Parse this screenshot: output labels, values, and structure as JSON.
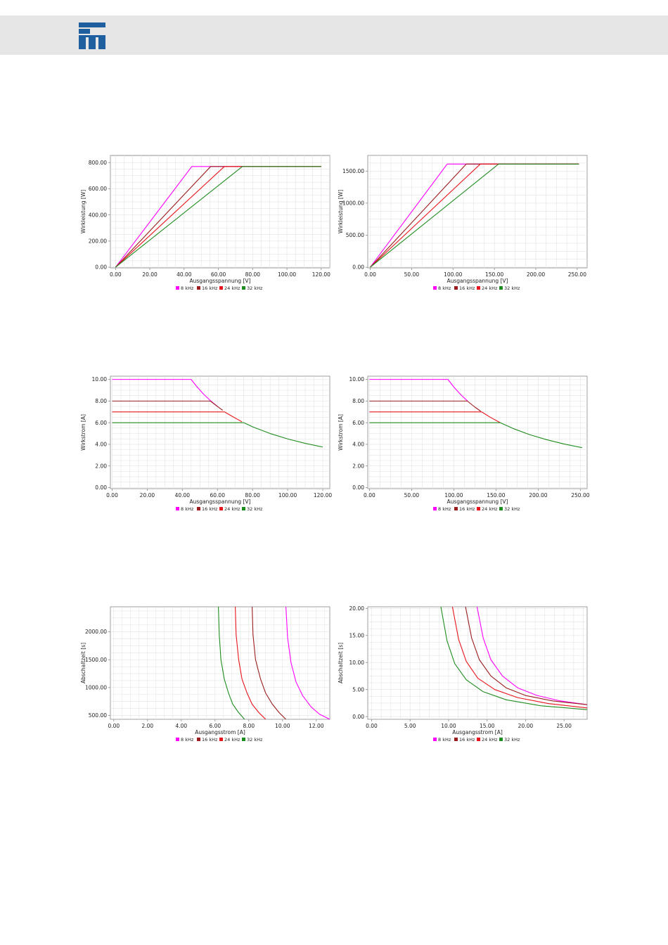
{
  "colors": {
    "header_bg": "#e6e6e6",
    "logo": "#1f5fa0",
    "grid": "#e3e3e3",
    "axis": "#888888"
  },
  "header": {
    "logo_icon": "company-logo-icon"
  },
  "chart_data": [
    {
      "type": "line",
      "id": "chart1",
      "xlabel": "Ausgangsspannung [V]",
      "ylabel": "Wirkleistung [W]",
      "xlim": [
        -3,
        125
      ],
      "ylim": [
        -5,
        855
      ],
      "xticks": [
        0,
        20,
        40,
        60,
        80,
        100,
        120
      ],
      "yticks": [
        0,
        200,
        400,
        600,
        800
      ],
      "tick_decimals": 2,
      "grid": true,
      "legend": "bottom",
      "series": [
        {
          "name": "8 kHz",
          "color": "#ff00ff",
          "x": [
            0,
            44.5,
            120
          ],
          "y": [
            0,
            770,
            770
          ]
        },
        {
          "name": "16 kHz",
          "color": "#9b1c1c",
          "x": [
            0,
            55.5,
            120
          ],
          "y": [
            0,
            770,
            770
          ]
        },
        {
          "name": "24 kHz",
          "color": "#e8141b",
          "x": [
            0,
            63.5,
            120
          ],
          "y": [
            0,
            770,
            770
          ]
        },
        {
          "name": "32 kHz",
          "color": "#1e8c1e",
          "x": [
            0,
            74,
            120
          ],
          "y": [
            0,
            770,
            770
          ]
        }
      ]
    },
    {
      "type": "line",
      "id": "chart2",
      "xlabel": "Ausgangsspannung [V]",
      "ylabel": "Wirkleistung [W]",
      "xlim": [
        -3,
        262
      ],
      "ylim": [
        -10,
        1745
      ],
      "xticks": [
        0,
        50,
        100,
        150,
        200,
        250
      ],
      "yticks": [
        0,
        500,
        1000,
        1500
      ],
      "tick_decimals": 2,
      "grid": true,
      "legend": "bottom",
      "series": [
        {
          "name": "8 kHz",
          "color": "#ff00ff",
          "x": [
            0,
            93,
            252
          ],
          "y": [
            0,
            1610,
            1610
          ]
        },
        {
          "name": "16 kHz",
          "color": "#9b1c1c",
          "x": [
            0,
            116,
            252
          ],
          "y": [
            0,
            1610,
            1610
          ]
        },
        {
          "name": "24 kHz",
          "color": "#e8141b",
          "x": [
            0,
            133,
            252
          ],
          "y": [
            0,
            1610,
            1610
          ]
        },
        {
          "name": "32 kHz",
          "color": "#1e8c1e",
          "x": [
            0,
            155,
            252
          ],
          "y": [
            0,
            1610,
            1610
          ]
        }
      ]
    },
    {
      "type": "line",
      "id": "chart3",
      "xlabel": "Ausgangsspannung [V]",
      "ylabel": "Wirkstrom [A]",
      "xlim": [
        -1,
        124
      ],
      "ylim": [
        -0.1,
        10.3
      ],
      "xticks": [
        0,
        20,
        40,
        60,
        80,
        100,
        120
      ],
      "yticks": [
        0,
        2,
        4,
        6,
        8,
        10
      ],
      "tick_decimals": 2,
      "grid": true,
      "legend": "bottom",
      "series": [
        {
          "name": "8 kHz",
          "color": "#ff00ff",
          "x": [
            0,
            45,
            48,
            52,
            56,
            60
          ],
          "y": [
            10,
            10,
            9.38,
            8.65,
            8.04,
            7.5
          ]
        },
        {
          "name": "16 kHz",
          "color": "#9b1c1c",
          "x": [
            0,
            56,
            60,
            63
          ],
          "y": [
            8,
            8,
            7.5,
            7.14
          ]
        },
        {
          "name": "24 kHz",
          "color": "#e8141b",
          "x": [
            0,
            64,
            68,
            74
          ],
          "y": [
            7,
            7,
            6.62,
            6.08
          ]
        },
        {
          "name": "32 kHz",
          "color": "#1e8c1e",
          "x": [
            0,
            75,
            80,
            90,
            100,
            110,
            120
          ],
          "y": [
            6,
            6,
            5.62,
            5.0,
            4.5,
            4.09,
            3.75
          ]
        }
      ]
    },
    {
      "type": "line",
      "id": "chart4",
      "xlabel": "Ausgangsspannung [V]",
      "ylabel": "Wirkstrom [A]",
      "xlim": [
        -2,
        258
      ],
      "ylim": [
        -0.1,
        10.3
      ],
      "xticks": [
        0,
        50,
        100,
        150,
        200,
        250
      ],
      "yticks": [
        0,
        2,
        4,
        6,
        8,
        10
      ],
      "tick_decimals": 2,
      "grid": true,
      "legend": "bottom",
      "series": [
        {
          "name": "8 kHz",
          "color": "#ff00ff",
          "x": [
            0,
            93,
            100,
            108,
            116
          ],
          "y": [
            10,
            10,
            9.3,
            8.61,
            8.02
          ]
        },
        {
          "name": "16 kHz",
          "color": "#9b1c1c",
          "x": [
            0,
            116,
            125,
            132
          ],
          "y": [
            8,
            8,
            7.44,
            7.05
          ]
        },
        {
          "name": "24 kHz",
          "color": "#e8141b",
          "x": [
            0,
            133,
            143,
            155
          ],
          "y": [
            7,
            7,
            6.51,
            6.0
          ]
        },
        {
          "name": "32 kHz",
          "color": "#1e8c1e",
          "x": [
            0,
            155,
            170,
            190,
            210,
            230,
            252
          ],
          "y": [
            6,
            6,
            5.47,
            4.89,
            4.43,
            4.04,
            3.69
          ]
        }
      ]
    },
    {
      "type": "line",
      "id": "chart5",
      "xlabel": "Ausgangsstrom [A]",
      "ylabel": "Abschaltzeit [s]",
      "xlim": [
        -0.2,
        12.8
      ],
      "ylim": [
        430,
        2450
      ],
      "xticks": [
        0,
        2,
        4,
        6,
        8,
        10,
        12
      ],
      "yticks": [
        500,
        1000,
        1500,
        2000
      ],
      "tick_decimals": 2,
      "grid": true,
      "legend": "bottom",
      "series": [
        {
          "name": "8 kHz",
          "color": "#ff00ff",
          "x": [
            10.2,
            10.3,
            10.5,
            10.8,
            11.2,
            11.7,
            12.2,
            12.8
          ],
          "y": [
            2450,
            1900,
            1450,
            1100,
            850,
            650,
            520,
            430
          ]
        },
        {
          "name": "16 kHz",
          "color": "#9b1c1c",
          "x": [
            8.2,
            8.25,
            8.4,
            8.7,
            9.0,
            9.4,
            9.8,
            10.2
          ],
          "y": [
            2450,
            1950,
            1500,
            1150,
            900,
            700,
            550,
            430
          ]
        },
        {
          "name": "24 kHz",
          "color": "#e8141b",
          "x": [
            7.2,
            7.25,
            7.4,
            7.6,
            7.9,
            8.2,
            8.6,
            9.0
          ],
          "y": [
            2450,
            1950,
            1500,
            1150,
            900,
            700,
            550,
            430
          ]
        },
        {
          "name": "32 kHz",
          "color": "#1e8c1e",
          "x": [
            6.2,
            6.25,
            6.35,
            6.55,
            6.8,
            7.05,
            7.4,
            7.75
          ],
          "y": [
            2450,
            1950,
            1500,
            1150,
            900,
            700,
            550,
            430
          ]
        }
      ]
    },
    {
      "type": "line",
      "id": "chart6",
      "xlabel": "Ausgangsstrom [A]",
      "ylabel": "Abschaltzeit [s]",
      "xlim": [
        -0.5,
        28
      ],
      "ylim": [
        -0.5,
        20.3
      ],
      "xticks": [
        0,
        5,
        10,
        15,
        20,
        25
      ],
      "yticks": [
        0,
        5,
        10,
        15,
        20
      ],
      "tick_decimals": 2,
      "grid": true,
      "legend": "bottom",
      "series": [
        {
          "name": "8 kHz",
          "color": "#ff00ff",
          "x": [
            13.7,
            14.5,
            15.5,
            17,
            19,
            21.5,
            24.5,
            28
          ],
          "y": [
            20.3,
            14.5,
            10.5,
            7.5,
            5.3,
            3.9,
            2.9,
            2.2
          ]
        },
        {
          "name": "16 kHz",
          "color": "#9b1c1c",
          "x": [
            12.2,
            13,
            14,
            15.5,
            17.5,
            20,
            23.5,
            28
          ],
          "y": [
            20.3,
            14.5,
            10.5,
            7.5,
            5.3,
            3.9,
            2.9,
            2.2
          ]
        },
        {
          "name": "24 kHz",
          "color": "#e8141b",
          "x": [
            10.5,
            11.3,
            12.3,
            13.8,
            16,
            19,
            23,
            28
          ],
          "y": [
            20.3,
            14.3,
            10.2,
            7.1,
            5.0,
            3.5,
            2.4,
            1.6
          ]
        },
        {
          "name": "32 kHz",
          "color": "#1e8c1e",
          "x": [
            9.0,
            9.8,
            10.8,
            12.3,
            14.5,
            17.5,
            22,
            28
          ],
          "y": [
            20.3,
            14.0,
            9.8,
            6.8,
            4.6,
            3.1,
            2.0,
            1.3
          ]
        }
      ]
    }
  ]
}
